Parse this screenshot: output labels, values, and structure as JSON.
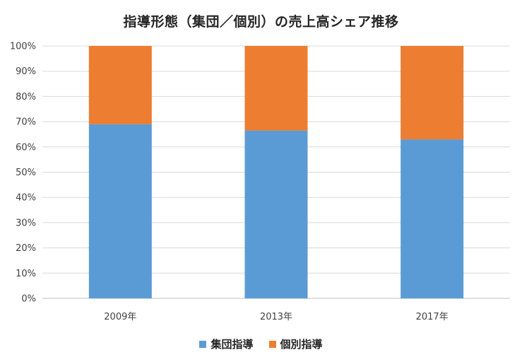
{
  "chart_data": {
    "type": "bar",
    "stacked": true,
    "normalized": true,
    "title": "指導形態（集団／個別）の売上高シェア推移",
    "categories": [
      "2009年",
      "2013年",
      "2017年"
    ],
    "series": [
      {
        "name": "集団指導",
        "color": "#5b9bd5",
        "values": [
          69,
          66.5,
          63
        ]
      },
      {
        "name": "個別指導",
        "color": "#ed7d31",
        "values": [
          31,
          33.5,
          37
        ]
      }
    ],
    "ylim": [
      0,
      100
    ],
    "yticks": [
      "0%",
      "10%",
      "20%",
      "30%",
      "40%",
      "50%",
      "60%",
      "70%",
      "80%",
      "90%",
      "100%"
    ],
    "xlabel": "",
    "ylabel": "",
    "grid": true,
    "legend_position": "bottom"
  }
}
